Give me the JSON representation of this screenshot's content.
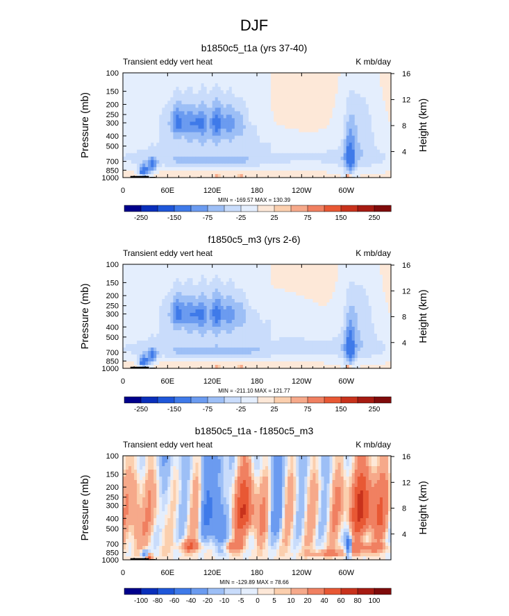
{
  "figure": {
    "title": "DJF"
  },
  "colors": {
    "seq": [
      "#00008b",
      "#0a2fbb",
      "#1f57d9",
      "#3f7ae9",
      "#6b9bf0",
      "#9dbff6",
      "#c9dcfb",
      "#e4eefd",
      "#fde8d8",
      "#fbcfae",
      "#f6a98a",
      "#f08061",
      "#e85834",
      "#c8321c",
      "#a61b12",
      "#7f0b0b"
    ],
    "land": "#000000"
  },
  "chart_data": [
    {
      "type": "heatmap",
      "title": "b1850c5_t1a (yrs 37-40)",
      "left_label": "Transient eddy vert heat",
      "right_label": "K mb/day",
      "ylabel": "Pressure (mb)",
      "y2label": "Height (km)",
      "x_ticks": [
        "0",
        "60E",
        "120E",
        "180",
        "120W",
        "60W"
      ],
      "x_tick_values": [
        0,
        60,
        120,
        180,
        240,
        300
      ],
      "xlim": [
        0,
        360
      ],
      "y_ticks": [
        "100",
        "150",
        "200",
        "250",
        "300",
        "400",
        "500",
        "700",
        "850",
        "1000"
      ],
      "y_tick_values": [
        100,
        150,
        200,
        250,
        300,
        400,
        500,
        700,
        850,
        1000
      ],
      "ylim": [
        1000,
        100
      ],
      "y2_ticks": [
        "4",
        "8",
        "12",
        "16"
      ],
      "y2_tick_values": [
        4,
        8,
        12,
        16
      ],
      "stats": "MIN = -169.57   MAX = 130.39",
      "min": -169.57,
      "max": 130.39,
      "colorbar_labels": [
        "-250",
        "-150",
        "-75",
        "-25",
        "25",
        "75",
        "150",
        "250"
      ],
      "colorbar_label_bounds": [
        1,
        3,
        5,
        7,
        9,
        11,
        13,
        15
      ],
      "variant": "model"
    },
    {
      "type": "heatmap",
      "title": "f1850c5_m3 (yrs 2-6)",
      "left_label": "Transient eddy vert heat",
      "right_label": "K mb/day",
      "ylabel": "Pressure (mb)",
      "y2label": "Height (km)",
      "x_ticks": [
        "0",
        "60E",
        "120E",
        "180",
        "120W",
        "60W"
      ],
      "x_tick_values": [
        0,
        60,
        120,
        180,
        240,
        300
      ],
      "xlim": [
        0,
        360
      ],
      "y_ticks": [
        "100",
        "150",
        "200",
        "250",
        "300",
        "400",
        "500",
        "700",
        "850",
        "1000"
      ],
      "y_tick_values": [
        100,
        150,
        200,
        250,
        300,
        400,
        500,
        700,
        850,
        1000
      ],
      "ylim": [
        1000,
        100
      ],
      "y2_ticks": [
        "4",
        "8",
        "12",
        "16"
      ],
      "y2_tick_values": [
        4,
        8,
        12,
        16
      ],
      "stats": "MIN = -211.10   MAX = 121.77",
      "min": -211.1,
      "max": 121.77,
      "colorbar_labels": [
        "-250",
        "-150",
        "-75",
        "-25",
        "25",
        "75",
        "150",
        "250"
      ],
      "colorbar_label_bounds": [
        1,
        3,
        5,
        7,
        9,
        11,
        13,
        15
      ],
      "variant": "model"
    },
    {
      "type": "heatmap",
      "title": "b1850c5_t1a - f1850c5_m3",
      "left_label": "Transient eddy vert heat",
      "right_label": "K mb/day",
      "ylabel": "Pressure (mb)",
      "y2label": "Height (km)",
      "x_ticks": [
        "0",
        "60E",
        "120E",
        "180",
        "120W",
        "60W"
      ],
      "x_tick_values": [
        0,
        60,
        120,
        180,
        240,
        300
      ],
      "xlim": [
        0,
        360
      ],
      "y_ticks": [
        "100",
        "150",
        "200",
        "250",
        "300",
        "400",
        "500",
        "700",
        "850",
        "1000"
      ],
      "y_tick_values": [
        100,
        150,
        200,
        250,
        300,
        400,
        500,
        700,
        850,
        1000
      ],
      "ylim": [
        1000,
        100
      ],
      "y2_ticks": [
        "4",
        "8",
        "12",
        "16"
      ],
      "y2_tick_values": [
        4,
        8,
        12,
        16
      ],
      "stats": "MIN = -129.89   MAX =  78.66",
      "min": -129.89,
      "max": 78.66,
      "colorbar_labels": [
        "-100",
        "-80",
        "-60",
        "-40",
        "-20",
        "-10",
        "-5",
        "0",
        "5",
        "10",
        "20",
        "40",
        "60",
        "80",
        "100"
      ],
      "colorbar_label_bounds": [
        1,
        2,
        3,
        4,
        5,
        6,
        7,
        8,
        9,
        10,
        11,
        12,
        13,
        14,
        15
      ],
      "variant": "diff"
    }
  ]
}
